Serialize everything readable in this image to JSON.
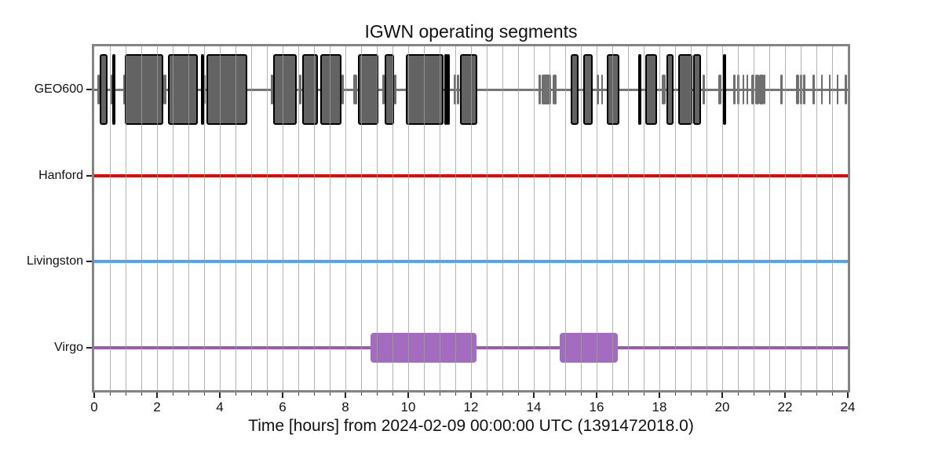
{
  "chart_data": {
    "type": "segment-timeline",
    "title": "IGWN operating segments",
    "xlabel": "Time [hours] from 2024-02-09 00:00:00 UTC (1391472018.0)",
    "xlim": [
      0,
      24
    ],
    "xticks_major": [
      0,
      2,
      4,
      6,
      8,
      10,
      12,
      14,
      16,
      18,
      20,
      22,
      24
    ],
    "minor_tick_step": 0.5,
    "grid": "vertical gridlines every 0.5 h, drawn over data",
    "legend_position": "none",
    "frame_color": "#838383",
    "gridline_color": "#9e9e9e",
    "detectors": [
      {
        "label": "GEO600",
        "line_color": "#757575",
        "active_color": "#636363",
        "active_edge_color": "#000000",
        "known_color": "#6f6f6f",
        "active": [
          [
            0.17,
            0.43
          ],
          [
            0.58,
            0.67
          ],
          [
            0.98,
            2.21
          ],
          [
            2.36,
            3.29
          ],
          [
            3.39,
            3.46
          ],
          [
            3.57,
            4.88
          ],
          [
            5.71,
            6.46
          ],
          [
            6.63,
            7.13
          ],
          [
            7.21,
            7.88
          ],
          [
            8.4,
            9.04
          ],
          [
            9.25,
            9.54
          ],
          [
            9.93,
            11.13
          ],
          [
            11.15,
            11.21
          ],
          [
            11.22,
            11.31
          ],
          [
            11.64,
            12.2
          ],
          [
            15.18,
            15.43
          ],
          [
            15.58,
            15.88
          ],
          [
            16.32,
            16.73
          ],
          [
            17.32,
            17.36
          ],
          [
            17.54,
            17.92
          ],
          [
            18.23,
            18.46
          ],
          [
            18.61,
            19.04
          ],
          [
            19.07,
            19.32
          ],
          [
            20.02,
            20.06
          ]
        ],
        "known": [
          [
            0.1,
            0.17
          ],
          [
            0.52,
            0.58
          ],
          [
            0.93,
            0.98
          ],
          [
            2.21,
            2.31
          ],
          [
            3.46,
            3.56
          ],
          [
            5.63,
            5.71
          ],
          [
            6.52,
            6.6
          ],
          [
            7.88,
            7.96
          ],
          [
            8.25,
            8.38
          ],
          [
            9.17,
            9.25
          ],
          [
            9.54,
            9.63
          ],
          [
            11.44,
            11.52
          ],
          [
            11.56,
            11.62
          ],
          [
            14.15,
            14.23
          ],
          [
            14.25,
            14.54
          ],
          [
            14.6,
            14.73
          ],
          [
            16.0,
            16.07
          ],
          [
            16.15,
            16.21
          ],
          [
            18.07,
            18.21
          ],
          [
            19.38,
            19.44
          ],
          [
            19.88,
            19.98
          ],
          [
            20.35,
            20.43
          ],
          [
            20.47,
            20.56
          ],
          [
            20.65,
            20.71
          ],
          [
            20.77,
            20.82
          ],
          [
            20.93,
            21.02
          ],
          [
            21.05,
            21.17
          ],
          [
            21.18,
            21.32
          ],
          [
            21.33,
            21.38
          ],
          [
            21.85,
            21.92
          ],
          [
            22.35,
            22.46
          ],
          [
            22.48,
            22.54
          ],
          [
            22.58,
            22.65
          ],
          [
            22.88,
            22.96
          ],
          [
            23.15,
            23.21
          ],
          [
            23.4,
            23.46
          ],
          [
            23.65,
            23.71
          ],
          [
            23.9,
            23.98
          ]
        ]
      },
      {
        "label": "Hanford",
        "line_color": "#ee0000",
        "active_color": "#ee0000",
        "known_color": "#ee0000",
        "active": [],
        "known": []
      },
      {
        "label": "Livingston",
        "line_color": "#4ba6ff",
        "active_color": "#4ba6ff",
        "known_color": "#4ba6ff",
        "active": [],
        "known": []
      },
      {
        "label": "Virgo",
        "line_color": "#9b59b6",
        "active_color": "#9b59b6",
        "known_color": "#a46cc0",
        "active": [],
        "known": [
          [
            8.81,
            12.17
          ],
          [
            14.82,
            16.67
          ]
        ]
      }
    ]
  }
}
